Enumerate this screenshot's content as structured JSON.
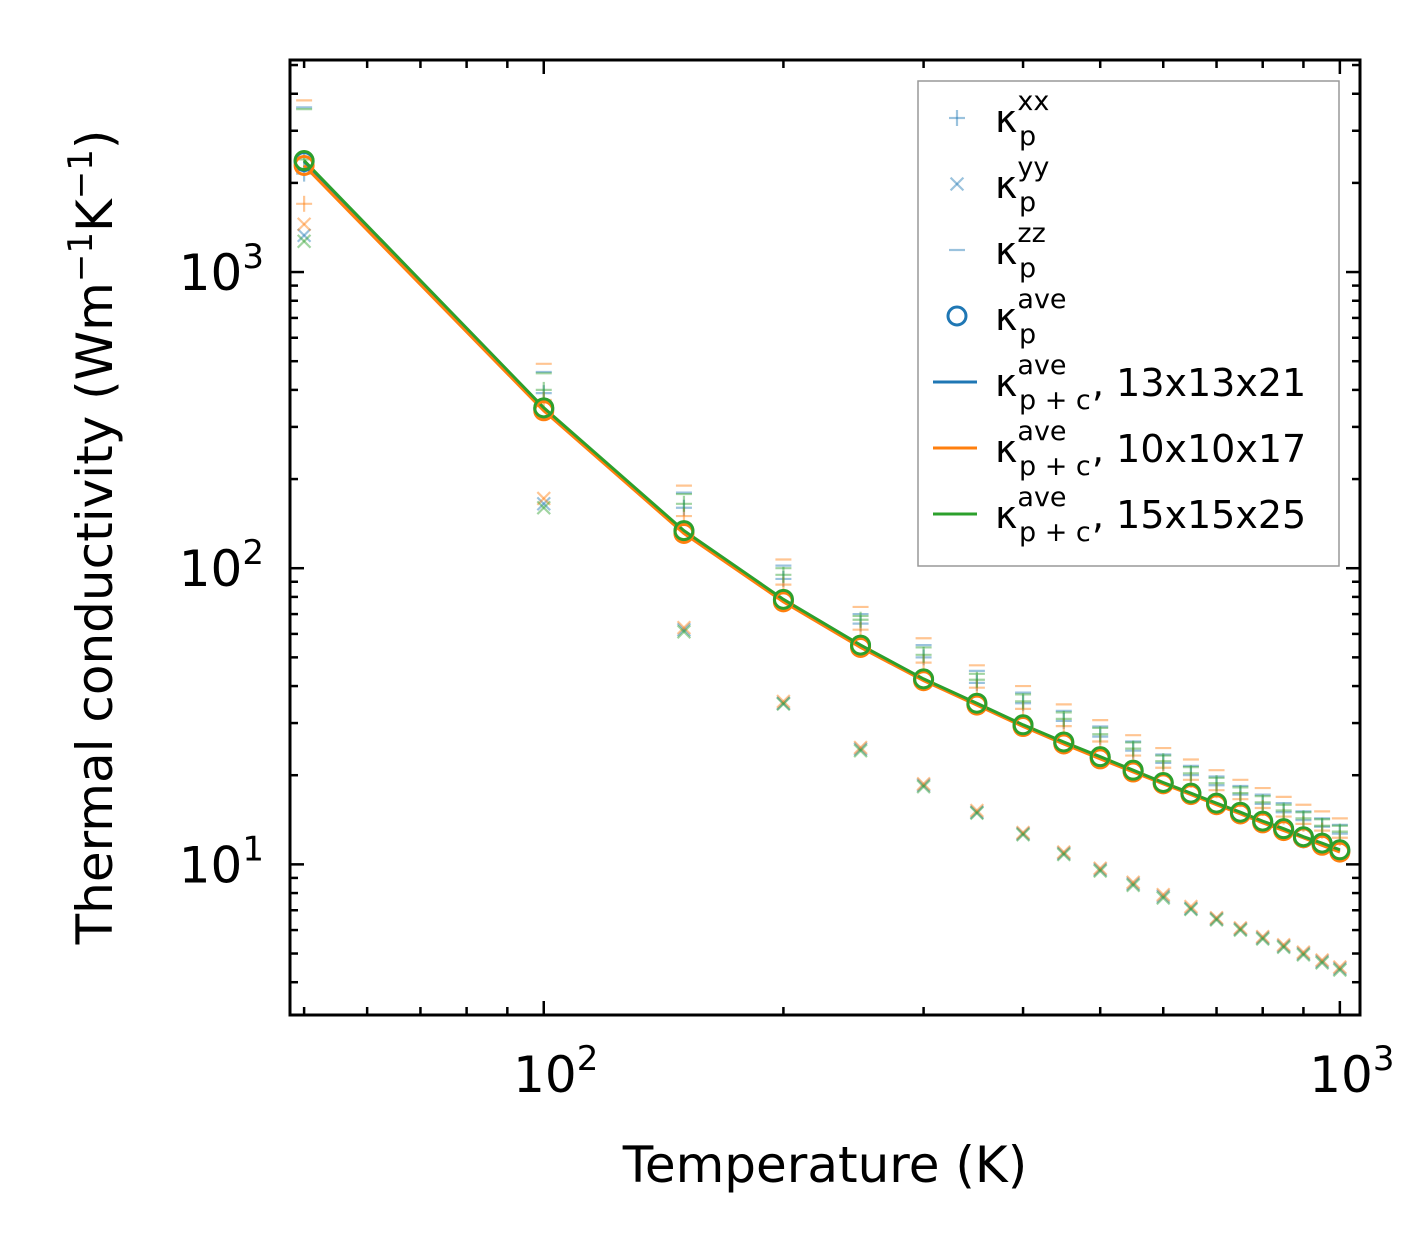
{
  "chart_data": {
    "type": "scatter",
    "scale": "log-log",
    "xlabel": "Temperature (K)",
    "ylabel_main": "Thermal conductivity (Wm",
    "ylabel_sup1": "−1",
    "ylabel_mid": "K",
    "ylabel_sup2": "−1",
    "ylabel_close": ")",
    "xlim": [
      48,
      1060
    ],
    "ylim": [
      3.1,
      5200
    ],
    "x_ticks": [
      {
        "value": 100,
        "base": "10",
        "exp": "2"
      },
      {
        "value": 1000,
        "base": "10",
        "exp": "3"
      }
    ],
    "y_ticks": [
      {
        "value": 10,
        "base": "10",
        "exp": "1"
      },
      {
        "value": 100,
        "base": "10",
        "exp": "2"
      },
      {
        "value": 1000,
        "base": "10",
        "exp": "3"
      }
    ],
    "temperatures": [
      50,
      100,
      150,
      200,
      250,
      300,
      350,
      400,
      450,
      500,
      550,
      600,
      650,
      700,
      750,
      800,
      850,
      900,
      950,
      1000
    ],
    "meshes": [
      {
        "name": "13x13x21",
        "color": "#1f77b4",
        "kxx": [
          2150,
          390,
          160,
          92,
          65,
          50,
          41,
          35,
          30.5,
          27,
          24.2,
          22,
          20,
          18.5,
          17.2,
          16,
          15,
          14.1,
          13.4,
          12.7
        ],
        "kyy": [
          1330,
          165,
          62,
          35,
          24.5,
          18.5,
          15,
          12.7,
          10.9,
          9.6,
          8.6,
          7.8,
          7.1,
          6.55,
          6.05,
          5.65,
          5.3,
          5.0,
          4.7,
          4.45
        ],
        "kzz": [
          3600,
          460,
          180,
          102,
          70,
          55,
          45,
          38,
          33,
          29.2,
          26,
          23.5,
          21.5,
          19.8,
          18.4,
          17.2,
          16.1,
          15.1,
          14.3,
          13.6
        ],
        "kave": [
          2360,
          345,
          133,
          78,
          54.5,
          42,
          34.7,
          29.4,
          25.7,
          22.9,
          20.6,
          18.8,
          17.3,
          16,
          14.9,
          13.9,
          13.1,
          12.3,
          11.7,
          11.1
        ]
      },
      {
        "name": "10x10x17",
        "color": "#ff7f0e",
        "kxx": [
          1700,
          370,
          150,
          88,
          62,
          48,
          39.5,
          33.5,
          29.3,
          26,
          23.3,
          21.2,
          19.3,
          17.8,
          16.6,
          15.5,
          14.5,
          13.7,
          13,
          12.3
        ],
        "kyy": [
          1450,
          172,
          63,
          35.5,
          24.8,
          18.7,
          15.2,
          12.8,
          11,
          9.7,
          8.7,
          7.9,
          7.2,
          6.6,
          6.1,
          5.7,
          5.35,
          5.05,
          4.75,
          4.5
        ],
        "kzz": [
          3800,
          490,
          190,
          107,
          74,
          58,
          47,
          40,
          34.7,
          30.7,
          27.3,
          24.7,
          22.6,
          20.8,
          19.3,
          18.1,
          16.9,
          15.9,
          15.1,
          14.3
        ],
        "kave": [
          2290,
          340,
          131,
          77,
          54,
          41.7,
          34.5,
          29.2,
          25.5,
          22.7,
          20.5,
          18.7,
          17.2,
          15.9,
          14.8,
          13.8,
          13,
          12.3,
          11.6,
          11
        ]
      },
      {
        "name": "15x15x25",
        "color": "#2ca02c",
        "kxx": [
          2400,
          400,
          165,
          95,
          67,
          51,
          42,
          35.5,
          31,
          27.5,
          24.6,
          22.3,
          20.3,
          18.8,
          17.4,
          16.2,
          15.2,
          14.3,
          13.5,
          12.9
        ],
        "kyy": [
          1270,
          160,
          61,
          34.8,
          24.2,
          18.3,
          14.9,
          12.6,
          10.8,
          9.5,
          8.5,
          7.7,
          7.05,
          6.5,
          6,
          5.6,
          5.25,
          4.95,
          4.65,
          4.4
        ],
        "kzz": [
          3550,
          455,
          178,
          100,
          69,
          54,
          44,
          37.5,
          32.6,
          28.9,
          25.8,
          23.3,
          21.3,
          19.6,
          18.2,
          17,
          15.9,
          15,
          14.2,
          13.5
        ],
        "kave": [
          2380,
          348,
          134,
          78.5,
          55,
          42.3,
          35,
          29.6,
          25.9,
          23.1,
          20.8,
          18.9,
          17.4,
          16.1,
          15,
          14,
          13.2,
          12.4,
          11.8,
          11.2
        ]
      }
    ],
    "legend": [
      {
        "kind": "plus",
        "sup": "xx",
        "sub": "p",
        "suffix": ""
      },
      {
        "kind": "cross",
        "sup": "yy",
        "sub": "p",
        "suffix": ""
      },
      {
        "kind": "dash",
        "sup": "zz",
        "sub": "p",
        "suffix": ""
      },
      {
        "kind": "circle",
        "sup": "ave",
        "sub": "p",
        "suffix": ""
      },
      {
        "kind": "line",
        "color": "#1f77b4",
        "sup": "ave",
        "sub": "p + c",
        "suffix": ", 13x13x21"
      },
      {
        "kind": "line",
        "color": "#ff7f0e",
        "sup": "ave",
        "sub": "p + c",
        "suffix": ", 10x10x17"
      },
      {
        "kind": "line",
        "color": "#2ca02c",
        "sup": "ave",
        "sub": "p + c",
        "suffix": ", 15x15x25"
      }
    ],
    "legend_symbol": "κ",
    "legend_position": "top-right",
    "marker_color": "#1f77b4",
    "marker_alpha": 0.45
  }
}
